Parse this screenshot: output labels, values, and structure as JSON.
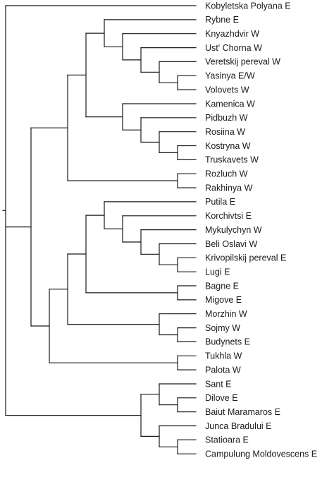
{
  "tree": {
    "children": [
      {
        "leaf": "Kobyletska Polyana E"
      },
      {
        "children": [
          {
            "children": [
              {
                "children": [
                  {
                    "children": [
                      {
                        "leaf": "Rybne E"
                      },
                      {
                        "children": [
                          {
                            "leaf": "Knyazhdvir W"
                          },
                          {
                            "children": [
                              {
                                "leaf": "Ust' Chorna W"
                              },
                              {
                                "children": [
                                  {
                                    "leaf": "Veretskij pereval W"
                                  },
                                  {
                                    "children": [
                                      {
                                        "leaf": "Yasinya E/W"
                                      },
                                      {
                                        "leaf": "Volovets W"
                                      }
                                    ]
                                  }
                                ]
                              }
                            ]
                          }
                        ]
                      }
                    ]
                  },
                  {
                    "children": [
                      {
                        "leaf": "Kamenica W"
                      },
                      {
                        "children": [
                          {
                            "leaf": "Pidbuzh W"
                          },
                          {
                            "children": [
                              {
                                "leaf": "Rosiina W"
                              },
                              {
                                "children": [
                                  {
                                    "leaf": "Kostryna W"
                                  },
                                  {
                                    "leaf": "Truskavets W"
                                  }
                                ]
                              }
                            ]
                          }
                        ]
                      }
                    ]
                  }
                ]
              },
              {
                "children": [
                  {
                    "leaf": "Rozluch W"
                  },
                  {
                    "leaf": "Rakhinya W"
                  }
                ]
              }
            ]
          },
          {
            "children": [
              {
                "children": [
                  {
                    "children": [
                      {
                        "children": [
                          {
                            "leaf": "Putila E"
                          },
                          {
                            "children": [
                              {
                                "leaf": "Korchivtsi E"
                              },
                              {
                                "children": [
                                  {
                                    "leaf": "Mykulychyn W"
                                  },
                                  {
                                    "children": [
                                      {
                                        "leaf": "Beli Oslavi W"
                                      },
                                      {
                                        "children": [
                                          {
                                            "leaf": "Krivopilskij pereval E"
                                          },
                                          {
                                            "leaf": "Lugi E"
                                          }
                                        ]
                                      }
                                    ]
                                  }
                                ]
                              }
                            ]
                          }
                        ]
                      },
                      {
                        "children": [
                          {
                            "leaf": "Bagne E"
                          },
                          {
                            "leaf": "Migove E"
                          }
                        ]
                      }
                    ]
                  },
                  {
                    "children": [
                      {
                        "leaf": "Morzhin W"
                      },
                      {
                        "children": [
                          {
                            "leaf": "Sojmy W"
                          },
                          {
                            "leaf": "Budynets E"
                          }
                        ]
                      }
                    ]
                  }
                ]
              },
              {
                "children": [
                  {
                    "leaf": "Tukhla W"
                  },
                  {
                    "leaf": "Palota W"
                  }
                ]
              }
            ]
          }
        ]
      },
      {
        "children": [
          {
            "children": [
              {
                "leaf": "Sant E"
              },
              {
                "children": [
                  {
                    "leaf": "Dilove E"
                  },
                  {
                    "leaf": "Baiut Maramaros E"
                  }
                ]
              }
            ]
          },
          {
            "children": [
              {
                "leaf": "Junca Bradului E"
              },
              {
                "children": [
                  {
                    "leaf": "Statioara E"
                  },
                  {
                    "leaf": "Campulung Moldovescens E"
                  }
                ]
              }
            ]
          }
        ]
      }
    ]
  }
}
